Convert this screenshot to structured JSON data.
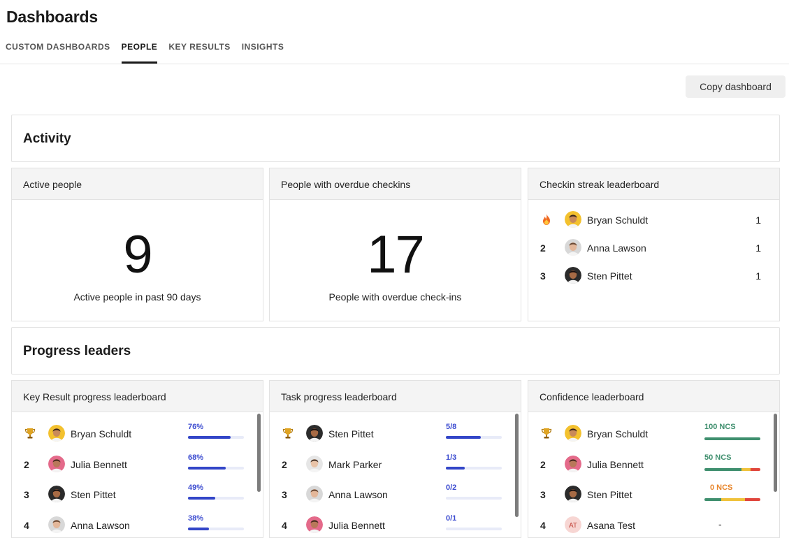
{
  "header": {
    "title": "Dashboards",
    "tabs": [
      {
        "label": "CUSTOM DASHBOARDS",
        "active": false
      },
      {
        "label": "PEOPLE",
        "active": true
      },
      {
        "label": "KEY RESULTS",
        "active": false
      },
      {
        "label": "INSIGHTS",
        "active": false
      }
    ],
    "copy_label": "Copy dashboard"
  },
  "activity": {
    "title": "Activity",
    "active_people": {
      "title": "Active people",
      "value": "9",
      "caption": "Active people in past 90 days"
    },
    "overdue": {
      "title": "People with overdue checkins",
      "value": "17",
      "caption": "People with overdue check-ins"
    },
    "streak": {
      "title": "Checkin streak leaderboard",
      "rows": [
        {
          "rank_icon": "fire-icon",
          "rank": "",
          "name": "Bryan Schuldt",
          "count": "1",
          "avatar": "yellow"
        },
        {
          "rank_icon": "",
          "rank": "2",
          "name": "Anna Lawson",
          "count": "1",
          "avatar": "grey"
        },
        {
          "rank_icon": "",
          "rank": "3",
          "name": "Sten Pittet",
          "count": "1",
          "avatar": "dark"
        }
      ]
    }
  },
  "progress": {
    "title": "Progress leaders",
    "kr": {
      "title": "Key Result progress leaderboard",
      "rows": [
        {
          "rank_icon": "trophy-icon",
          "rank": "",
          "name": "Bryan Schuldt",
          "metric": "76%",
          "progress": 0.76,
          "avatar": "yellow"
        },
        {
          "rank_icon": "",
          "rank": "2",
          "name": "Julia Bennett",
          "metric": "68%",
          "progress": 0.68,
          "avatar": "pink"
        },
        {
          "rank_icon": "",
          "rank": "3",
          "name": "Sten Pittet",
          "metric": "49%",
          "progress": 0.49,
          "avatar": "dark"
        },
        {
          "rank_icon": "",
          "rank": "4",
          "name": "Anna Lawson",
          "metric": "38%",
          "progress": 0.38,
          "avatar": "grey"
        }
      ]
    },
    "task": {
      "title": "Task progress leaderboard",
      "rows": [
        {
          "rank_icon": "trophy-icon",
          "rank": "",
          "name": "Sten Pittet",
          "metric": "5/8",
          "progress": 0.625,
          "avatar": "dark"
        },
        {
          "rank_icon": "",
          "rank": "2",
          "name": "Mark Parker",
          "metric": "1/3",
          "progress": 0.333,
          "avatar": "light"
        },
        {
          "rank_icon": "",
          "rank": "3",
          "name": "Anna Lawson",
          "metric": "0/2",
          "progress": 0,
          "avatar": "grey"
        },
        {
          "rank_icon": "",
          "rank": "4",
          "name": "Julia Bennett",
          "metric": "0/1",
          "progress": 0,
          "avatar": "pink"
        }
      ]
    },
    "confidence": {
      "title": "Confidence leaderboard",
      "rows": [
        {
          "rank_icon": "trophy-icon",
          "rank": "",
          "name": "Bryan Schuldt",
          "metric": "100 NCS",
          "metric_color": "#3f8f6e",
          "segments": [
            {
              "share": 1,
              "color": "#3f8f6e"
            }
          ],
          "avatar": "yellow"
        },
        {
          "rank_icon": "",
          "rank": "2",
          "name": "Julia Bennett",
          "metric": "50 NCS",
          "metric_color": "#3f8f6e",
          "segments": [
            {
              "share": 0.66,
              "color": "#3f8f6e"
            },
            {
              "share": 0.17,
              "color": "#f0c23a"
            },
            {
              "share": 0.17,
              "color": "#e0463c"
            }
          ],
          "avatar": "pink"
        },
        {
          "rank_icon": "",
          "rank": "3",
          "name": "Sten Pittet",
          "metric": "0 NCS",
          "metric_color": "#e8852a",
          "segments": [
            {
              "share": 0.3,
              "color": "#3f8f6e"
            },
            {
              "share": 0.42,
              "color": "#f0c23a"
            },
            {
              "share": 0.28,
              "color": "#e0463c"
            }
          ],
          "avatar": "dark"
        },
        {
          "rank_icon": "",
          "rank": "4",
          "name": "Asana Test",
          "metric": "-",
          "metric_color": "#222222",
          "segments": [],
          "avatar": "initials",
          "initials": "AT"
        }
      ]
    }
  }
}
